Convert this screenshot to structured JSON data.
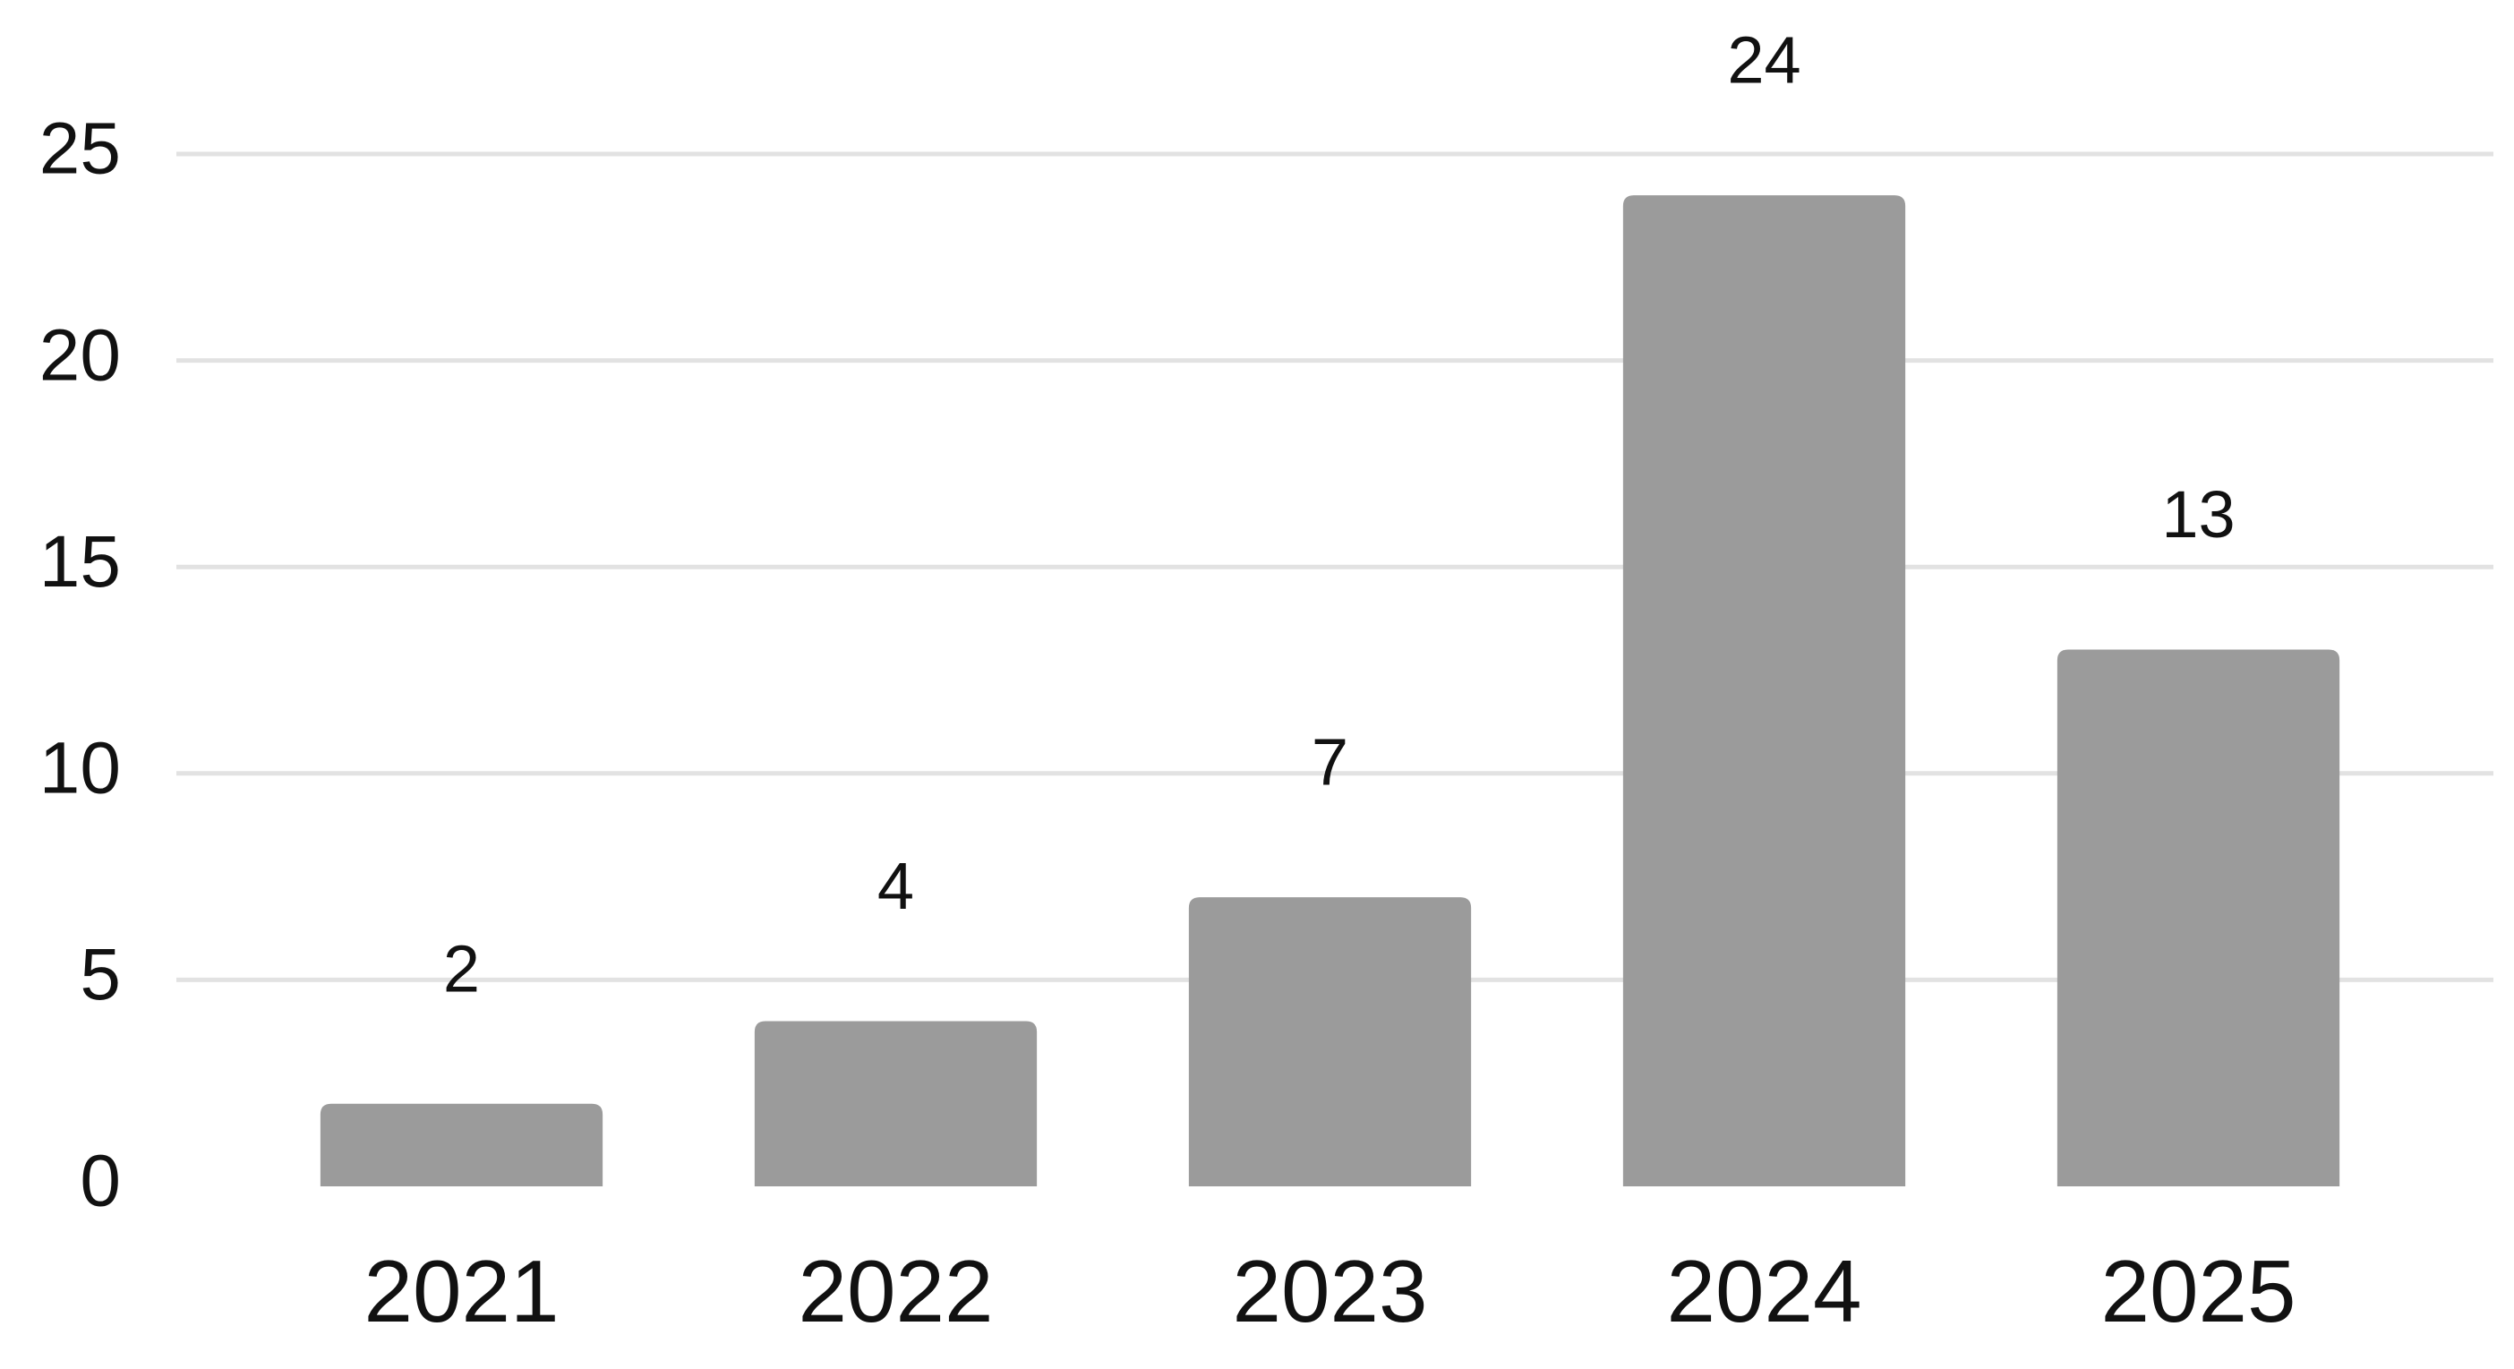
{
  "chart_data": {
    "type": "bar",
    "categories": [
      "2021",
      "2022",
      "2023",
      "2024",
      "2025"
    ],
    "values": [
      2,
      4,
      7,
      24,
      13
    ],
    "color": "#9b9b9b",
    "ylim": [
      0,
      25
    ],
    "yticks": [
      0,
      5,
      10,
      15,
      20,
      25
    ],
    "grid": true
  }
}
